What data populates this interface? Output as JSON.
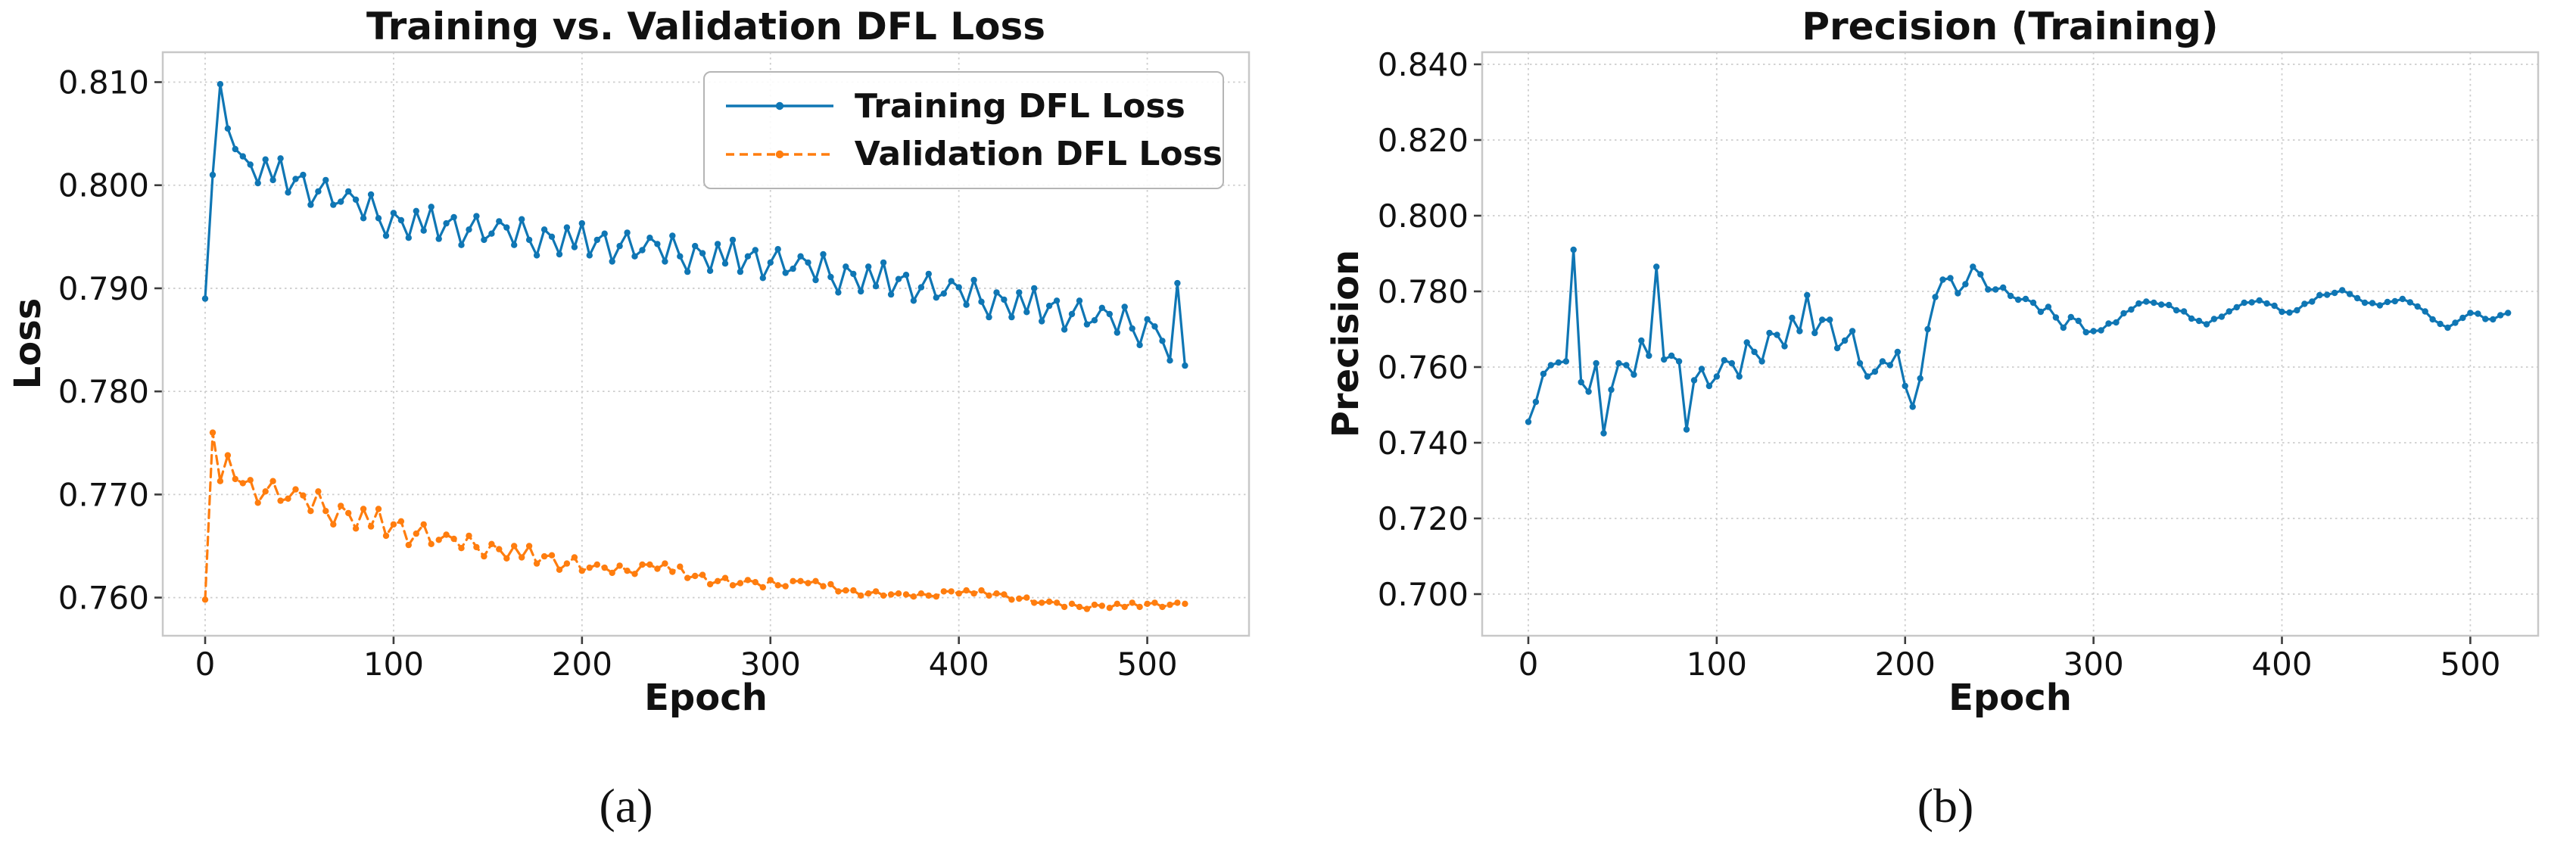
{
  "captions": {
    "a": "(a)",
    "b": "(b)"
  },
  "colors": {
    "accent_blue": "#0f76b4",
    "accent_orange": "#ff7d0e",
    "grid": "#cdcdcd",
    "spine": "#c8c8c8",
    "text": "#111111"
  },
  "chart_data": [
    {
      "id": "loss",
      "type": "line",
      "title": "Training vs. Validation DFL Loss",
      "xlabel": "Epoch",
      "ylabel": "Loss",
      "xlim": [
        -22.5,
        554
      ],
      "ylim": [
        0.7563,
        0.8129
      ],
      "xticks": [
        0,
        100,
        200,
        300,
        400,
        500
      ],
      "yticks": [
        0.76,
        0.77,
        0.78,
        0.79,
        0.8,
        0.81
      ],
      "grid": true,
      "legend_position": "upper right",
      "series": [
        {
          "name": "Training DFL Loss",
          "color": "#0f76b4",
          "line_style": "solid",
          "marker": "point",
          "x_start": 0,
          "x_step": 4,
          "y": [
            0.789,
            0.801,
            0.8098,
            0.8055,
            0.8035,
            0.8028,
            0.802,
            0.8002,
            0.8025,
            0.8005,
            0.8026,
            0.7993,
            0.8006,
            0.801,
            0.7981,
            0.7994,
            0.8005,
            0.7981,
            0.7984,
            0.7994,
            0.7986,
            0.7968,
            0.7991,
            0.7968,
            0.7951,
            0.7973,
            0.7966,
            0.7949,
            0.7975,
            0.7956,
            0.7979,
            0.7948,
            0.7963,
            0.7969,
            0.7942,
            0.7957,
            0.797,
            0.7947,
            0.7953,
            0.7965,
            0.7959,
            0.7942,
            0.7967,
            0.7947,
            0.7932,
            0.7957,
            0.795,
            0.7933,
            0.7959,
            0.794,
            0.7963,
            0.7932,
            0.7947,
            0.7953,
            0.7926,
            0.7941,
            0.7954,
            0.7931,
            0.7937,
            0.7949,
            0.7943,
            0.7926,
            0.7951,
            0.7931,
            0.7916,
            0.7941,
            0.7934,
            0.7917,
            0.7943,
            0.7924,
            0.7947,
            0.7916,
            0.7931,
            0.7937,
            0.791,
            0.7925,
            0.7938,
            0.7915,
            0.7919,
            0.7931,
            0.7925,
            0.7908,
            0.7933,
            0.7911,
            0.7896,
            0.7921,
            0.7914,
            0.7897,
            0.7921,
            0.7902,
            0.7925,
            0.7894,
            0.7909,
            0.7913,
            0.7888,
            0.7901,
            0.7914,
            0.7891,
            0.7895,
            0.7907,
            0.7901,
            0.7884,
            0.7908,
            0.7887,
            0.7872,
            0.7896,
            0.7889,
            0.7872,
            0.7896,
            0.7877,
            0.79,
            0.7868,
            0.7883,
            0.7888,
            0.786,
            0.7875,
            0.7888,
            0.7865,
            0.7869,
            0.7881,
            0.7875,
            0.7857,
            0.7882,
            0.7861,
            0.7845,
            0.787,
            0.7863,
            0.7849,
            0.783,
            0.7905,
            0.7825
          ]
        },
        {
          "name": "Validation DFL Loss",
          "color": "#ff7d0e",
          "line_style": "dashed",
          "marker": "point",
          "x_start": 0,
          "x_step": 4,
          "y": [
            0.7598,
            0.776,
            0.7713,
            0.7738,
            0.7715,
            0.7711,
            0.7714,
            0.7692,
            0.7703,
            0.7713,
            0.7694,
            0.7696,
            0.7705,
            0.7699,
            0.7684,
            0.7703,
            0.7684,
            0.7671,
            0.7689,
            0.7682,
            0.7667,
            0.7686,
            0.7669,
            0.7686,
            0.766,
            0.7671,
            0.7674,
            0.7651,
            0.7662,
            0.7671,
            0.7652,
            0.7656,
            0.7661,
            0.7657,
            0.7648,
            0.766,
            0.7649,
            0.764,
            0.7652,
            0.7647,
            0.7638,
            0.765,
            0.7639,
            0.765,
            0.7633,
            0.764,
            0.7641,
            0.7627,
            0.7633,
            0.7639,
            0.7626,
            0.7629,
            0.7632,
            0.7629,
            0.7624,
            0.7631,
            0.7626,
            0.7623,
            0.7632,
            0.7632,
            0.7628,
            0.7633,
            0.7625,
            0.763,
            0.7619,
            0.7621,
            0.7622,
            0.7613,
            0.7616,
            0.7619,
            0.7612,
            0.7614,
            0.7617,
            0.7615,
            0.761,
            0.7617,
            0.7612,
            0.7611,
            0.7616,
            0.7616,
            0.7614,
            0.7616,
            0.7611,
            0.7613,
            0.7606,
            0.7607,
            0.7607,
            0.7602,
            0.7604,
            0.7606,
            0.7602,
            0.7603,
            0.7604,
            0.7603,
            0.7601,
            0.7604,
            0.7602,
            0.7601,
            0.7606,
            0.7606,
            0.7604,
            0.7607,
            0.7604,
            0.7607,
            0.7602,
            0.7604,
            0.7603,
            0.7598,
            0.7599,
            0.76,
            0.7595,
            0.7595,
            0.7596,
            0.7595,
            0.7591,
            0.7594,
            0.7591,
            0.7589,
            0.7593,
            0.7592,
            0.759,
            0.7594,
            0.7591,
            0.7595,
            0.7591,
            0.7594,
            0.7595,
            0.7591,
            0.7593,
            0.7595,
            0.7594
          ]
        }
      ]
    },
    {
      "id": "precision",
      "type": "line",
      "title": "Precision (Training)",
      "xlabel": "Epoch",
      "ylabel": "Precision",
      "xlim": [
        -24.5,
        536
      ],
      "ylim": [
        0.689,
        0.8432
      ],
      "xticks": [
        0,
        100,
        200,
        300,
        400,
        500
      ],
      "yticks": [
        0.7,
        0.72,
        0.74,
        0.76,
        0.78,
        0.8,
        0.82,
        0.84
      ],
      "grid": true,
      "legend_position": "none",
      "series": [
        {
          "name": "Precision",
          "color": "#0f76b4",
          "line_style": "solid",
          "marker": "point",
          "x_start": 0,
          "x_step": 4,
          "y": [
            0.7455,
            0.7508,
            0.7582,
            0.7605,
            0.7612,
            0.7615,
            0.791,
            0.756,
            0.7535,
            0.761,
            0.7425,
            0.754,
            0.761,
            0.7605,
            0.758,
            0.767,
            0.763,
            0.7865,
            0.762,
            0.763,
            0.7615,
            0.7435,
            0.7565,
            0.7595,
            0.755,
            0.7575,
            0.7618,
            0.761,
            0.7575,
            0.7665,
            0.764,
            0.7615,
            0.769,
            0.7685,
            0.7655,
            0.773,
            0.7695,
            0.779,
            0.769,
            0.7725,
            0.7725,
            0.765,
            0.767,
            0.7695,
            0.761,
            0.7575,
            0.7588,
            0.7615,
            0.7605,
            0.764,
            0.755,
            0.7495,
            0.757,
            0.77,
            0.7785,
            0.7831,
            0.7835,
            0.7795,
            0.7819,
            0.7865,
            0.7845,
            0.7805,
            0.7805,
            0.781,
            0.7788,
            0.7778,
            0.778,
            0.777,
            0.7746,
            0.7759,
            0.7731,
            0.7704,
            0.7732,
            0.7722,
            0.7692,
            0.7695,
            0.7697,
            0.7715,
            0.7718,
            0.7742,
            0.7752,
            0.7768,
            0.7773,
            0.777,
            0.7765,
            0.7764,
            0.775,
            0.7747,
            0.7728,
            0.7722,
            0.7713,
            0.7727,
            0.7733,
            0.7747,
            0.7758,
            0.777,
            0.7771,
            0.7776,
            0.7768,
            0.7762,
            0.7746,
            0.7744,
            0.775,
            0.7767,
            0.7773,
            0.779,
            0.7791,
            0.7796,
            0.7803,
            0.7793,
            0.7782,
            0.777,
            0.7769,
            0.7763,
            0.7772,
            0.7774,
            0.778,
            0.7771,
            0.776,
            0.7747,
            0.7726,
            0.7714,
            0.7704,
            0.7717,
            0.773,
            0.7743,
            0.7741,
            0.7727,
            0.7726,
            0.7737,
            0.7743
          ]
        }
      ]
    }
  ]
}
